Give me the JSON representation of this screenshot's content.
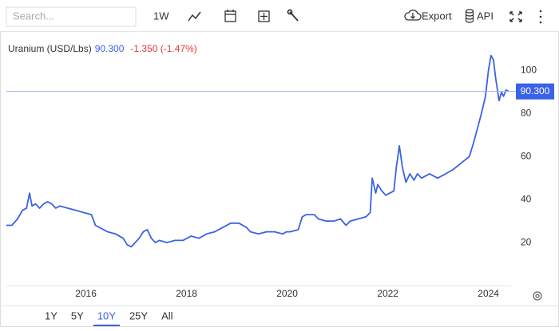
{
  "toolbar": {
    "search_placeholder": "Search...",
    "interval": "1W",
    "export": "Export",
    "api": "API"
  },
  "chart_data": {
    "type": "line",
    "title": "Uranium (USD/Lbs)",
    "last_price": {
      "value": 90.3,
      "label": "90.300"
    },
    "change": "-1.350 (-1.47%)",
    "color": "#3a62e6",
    "x": [
      2014.42,
      2014.53,
      2014.64,
      2014.74,
      2014.82,
      2014.88,
      2014.93,
      2015.0,
      2015.08,
      2015.16,
      2015.24,
      2015.32,
      2015.4,
      2015.48,
      2015.64,
      2015.8,
      2015.95,
      2016.11,
      2016.19,
      2016.27,
      2016.35,
      2016.43,
      2016.59,
      2016.74,
      2016.82,
      2016.9,
      2016.98,
      2017.06,
      2017.14,
      2017.22,
      2017.3,
      2017.38,
      2017.46,
      2017.61,
      2017.77,
      2017.93,
      2018.09,
      2018.25,
      2018.4,
      2018.56,
      2018.72,
      2018.88,
      2019.04,
      2019.19,
      2019.27,
      2019.43,
      2019.59,
      2019.75,
      2019.91,
      2019.99,
      2020.06,
      2020.22,
      2020.3,
      2020.38,
      2020.54,
      2020.62,
      2020.78,
      2020.93,
      2021.06,
      2021.17,
      2021.25,
      2021.41,
      2021.57,
      2021.65,
      2021.69,
      2021.76,
      2021.8,
      2021.88,
      2021.96,
      2022.04,
      2022.12,
      2022.17,
      2022.23,
      2022.29,
      2022.36,
      2022.44,
      2022.52,
      2022.59,
      2022.67,
      2022.83,
      2022.99,
      2023.15,
      2023.3,
      2023.46,
      2023.62,
      2023.7,
      2023.78,
      2023.86,
      2023.94,
      2024.0,
      2024.05,
      2024.1,
      2024.14,
      2024.21,
      2024.26,
      2024.3,
      2024.35,
      2024.4
    ],
    "values": [
      28,
      28,
      31,
      35,
      36,
      43,
      37,
      38,
      36,
      38,
      39,
      38,
      36,
      37,
      36,
      35,
      34,
      33,
      28,
      27,
      26,
      25,
      24,
      22,
      19,
      18,
      20,
      22,
      25,
      26,
      22,
      20,
      21,
      20,
      21,
      21,
      23,
      22,
      24,
      25,
      27,
      29,
      29,
      27,
      25,
      24,
      25,
      25,
      24,
      25,
      25,
      26,
      32,
      33,
      33,
      31,
      30,
      30,
      31,
      28,
      30,
      31,
      32,
      34,
      50,
      43,
      47,
      44,
      42,
      43,
      44,
      55,
      65,
      55,
      48,
      52,
      49,
      52,
      50,
      52,
      50,
      52,
      54,
      57,
      60,
      66,
      73,
      80,
      88,
      100,
      107,
      105,
      97,
      86,
      90,
      88,
      91,
      90.3
    ],
    "xlim": [
      2014.42,
      2024.45
    ],
    "xticks": [
      2016,
      2018,
      2020,
      2022,
      2024
    ],
    "ylim": [
      0,
      118
    ],
    "yticks": [
      20,
      40,
      60,
      80,
      100
    ],
    "grid": false
  },
  "range_buttons": [
    "1Y",
    "5Y",
    "10Y",
    "25Y",
    "All"
  ],
  "active_range_index": 2
}
